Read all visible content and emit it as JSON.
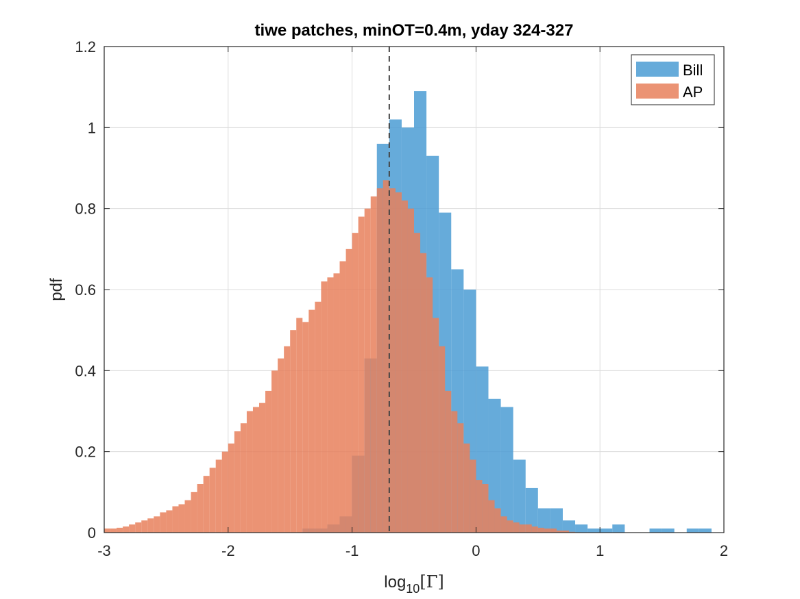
{
  "chart_data": {
    "type": "bar",
    "title": "tiwe patches, minOT=0.4m, yday 324-327",
    "xlabel": "log",
    "xlabel_sub": "10",
    "xlabel_tail": "[Γ]",
    "ylabel": "pdf",
    "xlim": [
      -3,
      2
    ],
    "ylim": [
      0,
      1.2
    ],
    "xticks": [
      -3,
      -2,
      -1,
      0,
      1,
      2
    ],
    "xtick_labels": [
      "-3",
      "-2",
      "-1",
      "0",
      "1",
      "2"
    ],
    "yticks": [
      0,
      0.2,
      0.4,
      0.6,
      0.8,
      1,
      1.2
    ],
    "ytick_labels": [
      "0",
      "0.2",
      "0.4",
      "0.6",
      "0.8",
      "1",
      "1.2"
    ],
    "grid": true,
    "legend_position": "top-right",
    "vline_x": -0.7,
    "colors": {
      "Bill": "#4b9cd3",
      "AP": "#e8805c",
      "overlap": "#a66f5c"
    },
    "series": [
      {
        "name": "Bill",
        "bin_width": 0.1,
        "bin_edges_start": -1.4,
        "values": [
          0.01,
          0.01,
          0.02,
          0.04,
          0.19,
          0.43,
          0.96,
          1.02,
          1.0,
          1.09,
          0.93,
          0.79,
          0.65,
          0.6,
          0.41,
          0.33,
          0.31,
          0.18,
          0.11,
          0.06,
          0.06,
          0.03,
          0.02,
          0.01,
          0.01,
          0.02,
          0.0,
          0.0,
          0.01,
          0.01,
          0.0,
          0.01,
          0.01
        ]
      },
      {
        "name": "AP",
        "bin_width": 0.05,
        "bin_edges_start": -3.0,
        "values": [
          0.01,
          0.01,
          0.012,
          0.015,
          0.02,
          0.025,
          0.03,
          0.035,
          0.04,
          0.05,
          0.055,
          0.065,
          0.07,
          0.08,
          0.1,
          0.12,
          0.14,
          0.16,
          0.18,
          0.2,
          0.22,
          0.25,
          0.27,
          0.3,
          0.31,
          0.32,
          0.35,
          0.4,
          0.43,
          0.46,
          0.5,
          0.53,
          0.52,
          0.55,
          0.57,
          0.62,
          0.63,
          0.64,
          0.67,
          0.7,
          0.74,
          0.78,
          0.8,
          0.83,
          0.85,
          0.87,
          0.85,
          0.84,
          0.82,
          0.8,
          0.74,
          0.69,
          0.63,
          0.53,
          0.46,
          0.35,
          0.3,
          0.27,
          0.22,
          0.18,
          0.13,
          0.12,
          0.08,
          0.06,
          0.04,
          0.03,
          0.025,
          0.02,
          0.02,
          0.015,
          0.012,
          0.01,
          0.01,
          0.005,
          0.005,
          0.002,
          0.001,
          0.0,
          0.0,
          0.0,
          0.0,
          0.0,
          0.0,
          0.0,
          0.0,
          0.0,
          0.0,
          0.0,
          0.0,
          0.0,
          0.0,
          0.0,
          0.0,
          0.0,
          0.0,
          0.0,
          0.0,
          0.0,
          0.0,
          0.0
        ]
      }
    ]
  }
}
